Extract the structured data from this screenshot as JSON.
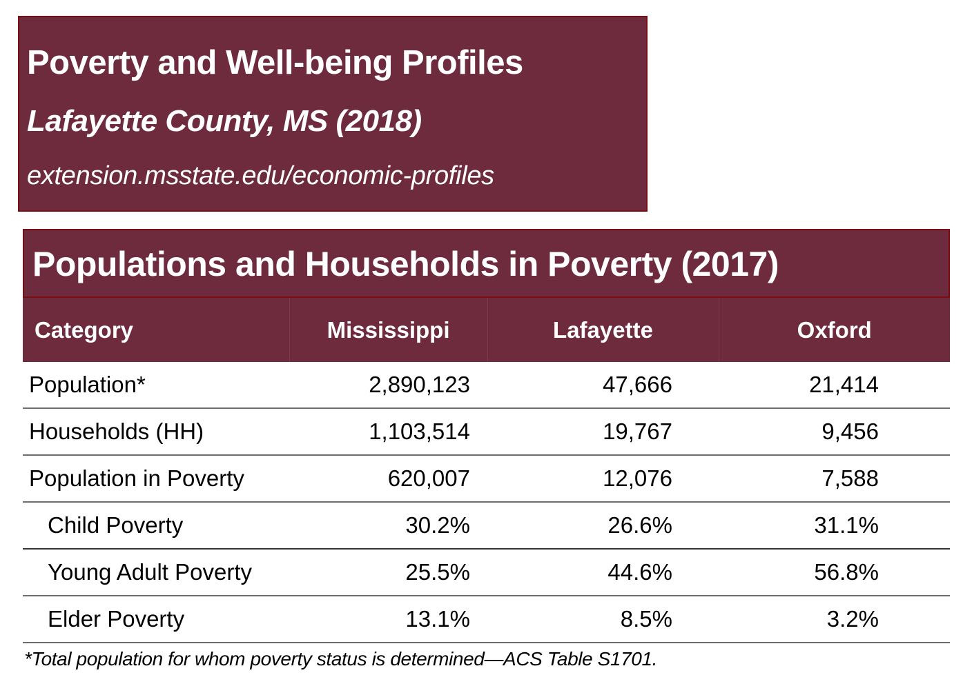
{
  "header": {
    "title": "Poverty and Well-being Profiles",
    "subtitle": "Lafayette County, MS (2018)",
    "url": "extension.msstate.edu/economic-profiles"
  },
  "section": {
    "title": "Populations and Households in Poverty (2017)"
  },
  "table": {
    "columns": [
      "Category",
      "Mississippi",
      "Lafayette",
      "Oxford"
    ],
    "rows": [
      {
        "category": "Population*",
        "indent": false,
        "mississippi": "2,890,123",
        "lafayette": "47,666",
        "oxford": "21,414"
      },
      {
        "category": "Households (HH)",
        "indent": false,
        "mississippi": "1,103,514",
        "lafayette": "19,767",
        "oxford": "9,456"
      },
      {
        "category": "Population in Poverty",
        "indent": false,
        "mississippi": "620,007",
        "lafayette": "12,076",
        "oxford": "7,588"
      },
      {
        "category": "Child Poverty",
        "indent": true,
        "mississippi": "30.2%",
        "lafayette": "26.6%",
        "oxford": "31.1%"
      },
      {
        "category": "Young Adult Poverty",
        "indent": true,
        "mississippi": "25.5%",
        "lafayette": "44.6%",
        "oxford": "56.8%"
      },
      {
        "category": "Elder Poverty",
        "indent": true,
        "mississippi": "13.1%",
        "lafayette": "8.5%",
        "oxford": "3.2%"
      }
    ]
  },
  "footnote": "*Total population for whom poverty status is determined—ACS Table S1701.",
  "colors": {
    "maroon": "#6e2b3e",
    "border": "#7a0c12"
  }
}
